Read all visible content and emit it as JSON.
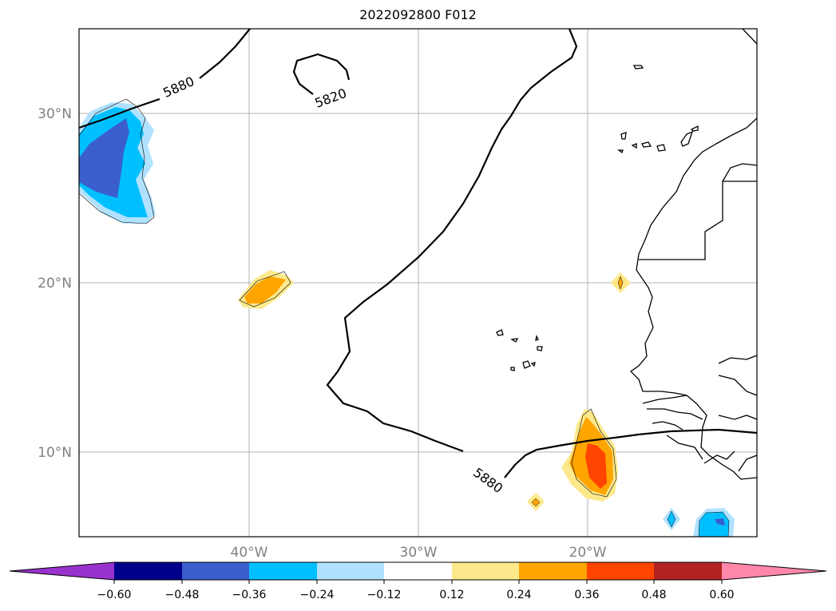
{
  "title": "2022092800 F012",
  "map": {
    "lat_labels": [
      "30°N",
      "20°N",
      "10°N"
    ],
    "lon_labels": [
      "40°W",
      "30°W",
      "20°W"
    ],
    "contour_labels": [
      "5880",
      "5820",
      "5880"
    ]
  },
  "colorbar": {
    "ticks": [
      "−0.60",
      "−0.48",
      "−0.36",
      "−0.24",
      "−0.12",
      "0.12",
      "0.24",
      "0.36",
      "0.48",
      "0.60"
    ],
    "colors": [
      "#9932cc",
      "#00008b",
      "#3a5fcd",
      "#00bfff",
      "#b0e2ff",
      "#ffffff",
      "#fde98c",
      "#ffa500",
      "#ff4500",
      "#b22222",
      "#ff88aa"
    ],
    "extend": "both"
  }
}
